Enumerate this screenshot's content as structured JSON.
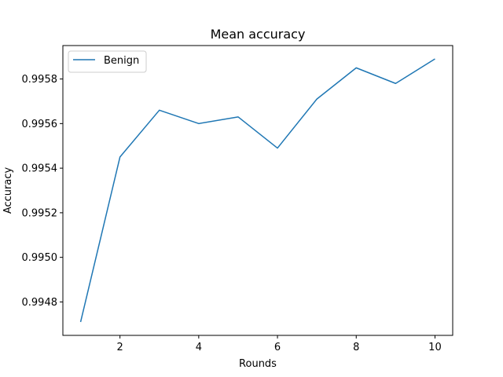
{
  "chart_data": {
    "type": "line",
    "title": "Mean accuracy",
    "xlabel": "Rounds",
    "ylabel": "Accuracy",
    "x": [
      1,
      2,
      3,
      4,
      5,
      6,
      7,
      8,
      9,
      10
    ],
    "series": [
      {
        "name": "Benign",
        "color": "#1f77b4",
        "values": [
          0.99471,
          0.99545,
          0.99566,
          0.9956,
          0.99563,
          0.99549,
          0.99571,
          0.99585,
          0.99578,
          0.99589
        ]
      }
    ],
    "xlim": [
      0.55,
      10.45
    ],
    "ylim": [
      0.99465,
      0.99595
    ],
    "xticks": [
      2,
      4,
      6,
      8,
      10
    ],
    "xtick_labels": [
      "2",
      "4",
      "6",
      "8",
      "10"
    ],
    "yticks": [
      0.9948,
      0.995,
      0.9952,
      0.9954,
      0.9956,
      0.9958
    ],
    "ytick_labels": [
      "0.9948",
      "0.9950",
      "0.9952",
      "0.9954",
      "0.9956",
      "0.9958"
    ],
    "legend_position": "top-left",
    "grid": false
  }
}
